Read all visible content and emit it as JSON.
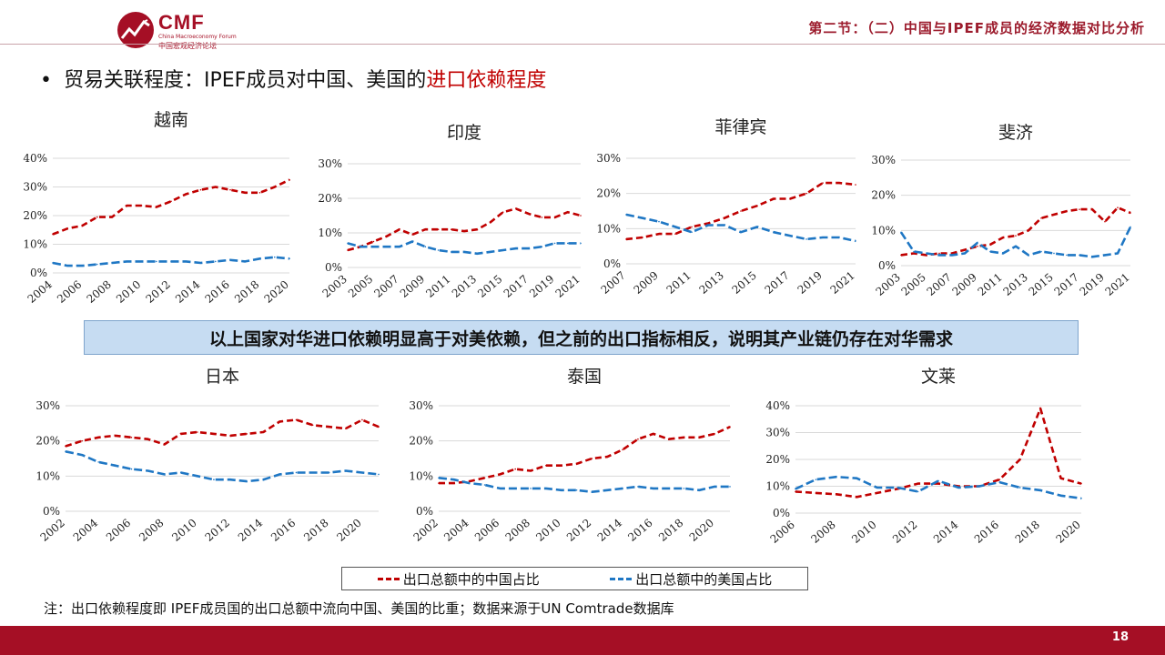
{
  "header": {
    "logo_text": "CMF",
    "logo_subtitle_en": "China Macroeconomy Forum",
    "logo_subtitle_cn": "中国宏观经济论坛",
    "section_title": "第二节：（二）中国与IPEF成员的经济数据对比分析"
  },
  "bullet": {
    "text": "贸易关联程度：IPEF成员对中国、美国的",
    "emphasis": "进口依赖程度"
  },
  "banner": "以上国家对华进口依赖明显高于对美依赖，但之前的出口指标相反，说明其产业链仍存在对华需求",
  "legend": {
    "china": "出口总额中的中国占比",
    "us": "出口总额中的美国占比"
  },
  "note": "注：出口依赖程度即 IPEF成员国的出口总额中流向中国、美国的比重；数据来源于UN Comtrade数据库",
  "page_number": "18",
  "colors": {
    "china": "#c00000",
    "us": "#1f77c4",
    "brand": "#a50f25",
    "banner_bg": "#c6dcf2"
  },
  "chart_data": [
    {
      "type": "line",
      "title": "越南",
      "x": [
        2004,
        2005,
        2006,
        2007,
        2008,
        2009,
        2010,
        2011,
        2012,
        2013,
        2014,
        2015,
        2016,
        2017,
        2018,
        2019,
        2020
      ],
      "xticks": [
        "2004",
        "2006",
        "2008",
        "2010",
        "2012",
        "2014",
        "2016",
        "2018",
        "2020"
      ],
      "ylim": [
        0,
        40
      ],
      "yticks": [
        "0%",
        "10%",
        "20%",
        "30%",
        "40%"
      ],
      "ytick_values": [
        0,
        10,
        20,
        30,
        40
      ],
      "series": [
        {
          "name": "出口总额中的中国占比",
          "values": [
            13.5,
            15.5,
            16.5,
            19.5,
            19.5,
            23.5,
            23.5,
            23,
            25,
            27.5,
            29,
            30,
            29,
            28,
            28,
            30,
            32.5
          ]
        },
        {
          "name": "出口总额中的美国占比",
          "values": [
            3.5,
            2.5,
            2.5,
            3,
            3.5,
            4,
            4,
            4,
            4,
            4,
            3.5,
            4,
            4.5,
            4,
            5,
            5.5,
            5
          ]
        }
      ]
    },
    {
      "type": "line",
      "title": "印度",
      "x": [
        2003,
        2004,
        2005,
        2006,
        2007,
        2008,
        2009,
        2010,
        2011,
        2012,
        2013,
        2014,
        2015,
        2016,
        2017,
        2018,
        2019,
        2020,
        2021
      ],
      "xticks": [
        "2003",
        "2005",
        "2007",
        "2009",
        "2011",
        "2013",
        "2015",
        "2017",
        "2019",
        "2021"
      ],
      "ylim": [
        0,
        30
      ],
      "yticks": [
        "0%",
        "10%",
        "20%",
        "30%"
      ],
      "ytick_values": [
        0,
        10,
        20,
        30
      ],
      "series": [
        {
          "name": "出口总额中的中国占比",
          "values": [
            5,
            6,
            7.5,
            9,
            11,
            9.5,
            11,
            11,
            11,
            10.5,
            11,
            13,
            16,
            17,
            15.5,
            14.5,
            14.5,
            16,
            15
          ]
        },
        {
          "name": "出口总额中的美国占比",
          "values": [
            7,
            6,
            6,
            6,
            6,
            7.5,
            6,
            5,
            4.5,
            4.5,
            4,
            4.5,
            5,
            5.5,
            5.5,
            6,
            7,
            7,
            7
          ]
        }
      ]
    },
    {
      "type": "line",
      "title": "菲律宾",
      "x": [
        2007,
        2008,
        2009,
        2010,
        2011,
        2012,
        2013,
        2014,
        2015,
        2016,
        2017,
        2018,
        2019,
        2020,
        2021
      ],
      "xticks": [
        "2007",
        "2009",
        "2011",
        "2013",
        "2015",
        "2017",
        "2019",
        "2021"
      ],
      "ylim": [
        0,
        30
      ],
      "yticks": [
        "0%",
        "10%",
        "20%",
        "30%"
      ],
      "ytick_values": [
        0,
        10,
        20,
        30
      ],
      "series": [
        {
          "name": "出口总额中的中国占比",
          "values": [
            7,
            7.5,
            8.5,
            8.5,
            10.5,
            11.5,
            13,
            15,
            16.5,
            18.5,
            18.5,
            20,
            23,
            23,
            22.5
          ]
        },
        {
          "name": "出口总额中的美国占比",
          "values": [
            14,
            13,
            12,
            10.5,
            9,
            11,
            11,
            9,
            10.5,
            9,
            8,
            7,
            7.5,
            7.5,
            6.5
          ]
        }
      ]
    },
    {
      "type": "line",
      "title": "斐济",
      "x": [
        2003,
        2004,
        2005,
        2006,
        2007,
        2008,
        2009,
        2010,
        2011,
        2012,
        2013,
        2014,
        2015,
        2016,
        2017,
        2018,
        2019,
        2020,
        2021
      ],
      "xticks": [
        "2003",
        "2005",
        "2007",
        "2009",
        "2011",
        "2013",
        "2015",
        "2017",
        "2019",
        "2021"
      ],
      "ylim": [
        0,
        30
      ],
      "yticks": [
        "0%",
        "10%",
        "20%",
        "30%"
      ],
      "ytick_values": [
        0,
        10,
        20,
        30
      ],
      "series": [
        {
          "name": "出口总额中的中国占比",
          "values": [
            3,
            3.5,
            3,
            3.5,
            3.5,
            4.5,
            5.5,
            6,
            8,
            8.5,
            10,
            13.5,
            14.5,
            15.5,
            16,
            16,
            12.5,
            16.5,
            15
          ]
        },
        {
          "name": "出口总额中的美国占比",
          "values": [
            9.5,
            4,
            3.5,
            3,
            3,
            3.5,
            6.5,
            4,
            3.5,
            5.5,
            3,
            4,
            3.5,
            3,
            3,
            2.5,
            3,
            3.5,
            11
          ]
        }
      ]
    },
    {
      "type": "line",
      "title": "日本",
      "x": [
        2002,
        2003,
        2004,
        2005,
        2006,
        2007,
        2008,
        2009,
        2010,
        2011,
        2012,
        2013,
        2014,
        2015,
        2016,
        2017,
        2018,
        2019,
        2020,
        2021
      ],
      "xticks": [
        "2002",
        "2004",
        "2006",
        "2008",
        "2010",
        "2012",
        "2014",
        "2016",
        "2018",
        "2020"
      ],
      "ylim": [
        0,
        30
      ],
      "yticks": [
        "0%",
        "10%",
        "20%",
        "30%"
      ],
      "ytick_values": [
        0,
        10,
        20,
        30
      ],
      "series": [
        {
          "name": "出口总额中的中国占比",
          "values": [
            18.5,
            20,
            21,
            21.5,
            21,
            20.5,
            19,
            22,
            22.5,
            22,
            21.5,
            22,
            22.5,
            25.5,
            26,
            24.5,
            24,
            23.5,
            26,
            24
          ]
        },
        {
          "name": "出口总额中的美国占比",
          "values": [
            17,
            16,
            14,
            13,
            12,
            11.5,
            10.5,
            11,
            10,
            9,
            9,
            8.5,
            9,
            10.5,
            11,
            11,
            11,
            11.5,
            11,
            10.5
          ]
        }
      ]
    },
    {
      "type": "line",
      "title": "泰国",
      "x": [
        2002,
        2003,
        2004,
        2005,
        2006,
        2007,
        2008,
        2009,
        2010,
        2011,
        2012,
        2013,
        2014,
        2015,
        2016,
        2017,
        2018,
        2019,
        2020,
        2021
      ],
      "xticks": [
        "2002",
        "2004",
        "2006",
        "2008",
        "2010",
        "2012",
        "2014",
        "2016",
        "2018",
        "2020"
      ],
      "ylim": [
        0,
        30
      ],
      "yticks": [
        "0%",
        "10%",
        "20%",
        "30%"
      ],
      "ytick_values": [
        0,
        10,
        20,
        30
      ],
      "series": [
        {
          "name": "出口总额中的中国占比",
          "values": [
            8,
            8,
            8.5,
            9.5,
            10.5,
            12,
            11.5,
            13,
            13,
            13.5,
            15,
            15.5,
            17.5,
            20.5,
            22,
            20.5,
            21,
            21,
            22,
            24
          ]
        },
        {
          "name": "出口总额中的美国占比",
          "values": [
            9.5,
            9,
            8,
            7.5,
            6.5,
            6.5,
            6.5,
            6.5,
            6,
            6,
            5.5,
            6,
            6.5,
            7,
            6.5,
            6.5,
            6.5,
            6,
            7,
            7
          ]
        }
      ]
    },
    {
      "type": "line",
      "title": "文莱",
      "x": [
        2006,
        2007,
        2008,
        2009,
        2010,
        2011,
        2012,
        2013,
        2014,
        2015,
        2016,
        2017,
        2018,
        2019,
        2020
      ],
      "xticks": [
        "2006",
        "2008",
        "2010",
        "2012",
        "2014",
        "2016",
        "2018",
        "2020"
      ],
      "ylim": [
        0,
        40
      ],
      "yticks": [
        "0%",
        "10%",
        "20%",
        "30%",
        "40%"
      ],
      "ytick_values": [
        0,
        10,
        20,
        30,
        40
      ],
      "series": [
        {
          "name": "出口总额中的中国占比",
          "values": [
            8,
            7.5,
            7,
            6,
            7.5,
            9,
            11,
            11,
            10,
            10,
            12.5,
            20,
            39,
            13,
            11
          ]
        },
        {
          "name": "出口总额中的美国占比",
          "values": [
            9,
            12.5,
            13.5,
            13,
            9.5,
            9.5,
            8,
            12,
            9.5,
            10,
            11.5,
            9.5,
            8.5,
            6.5,
            5.5
          ]
        }
      ]
    }
  ]
}
